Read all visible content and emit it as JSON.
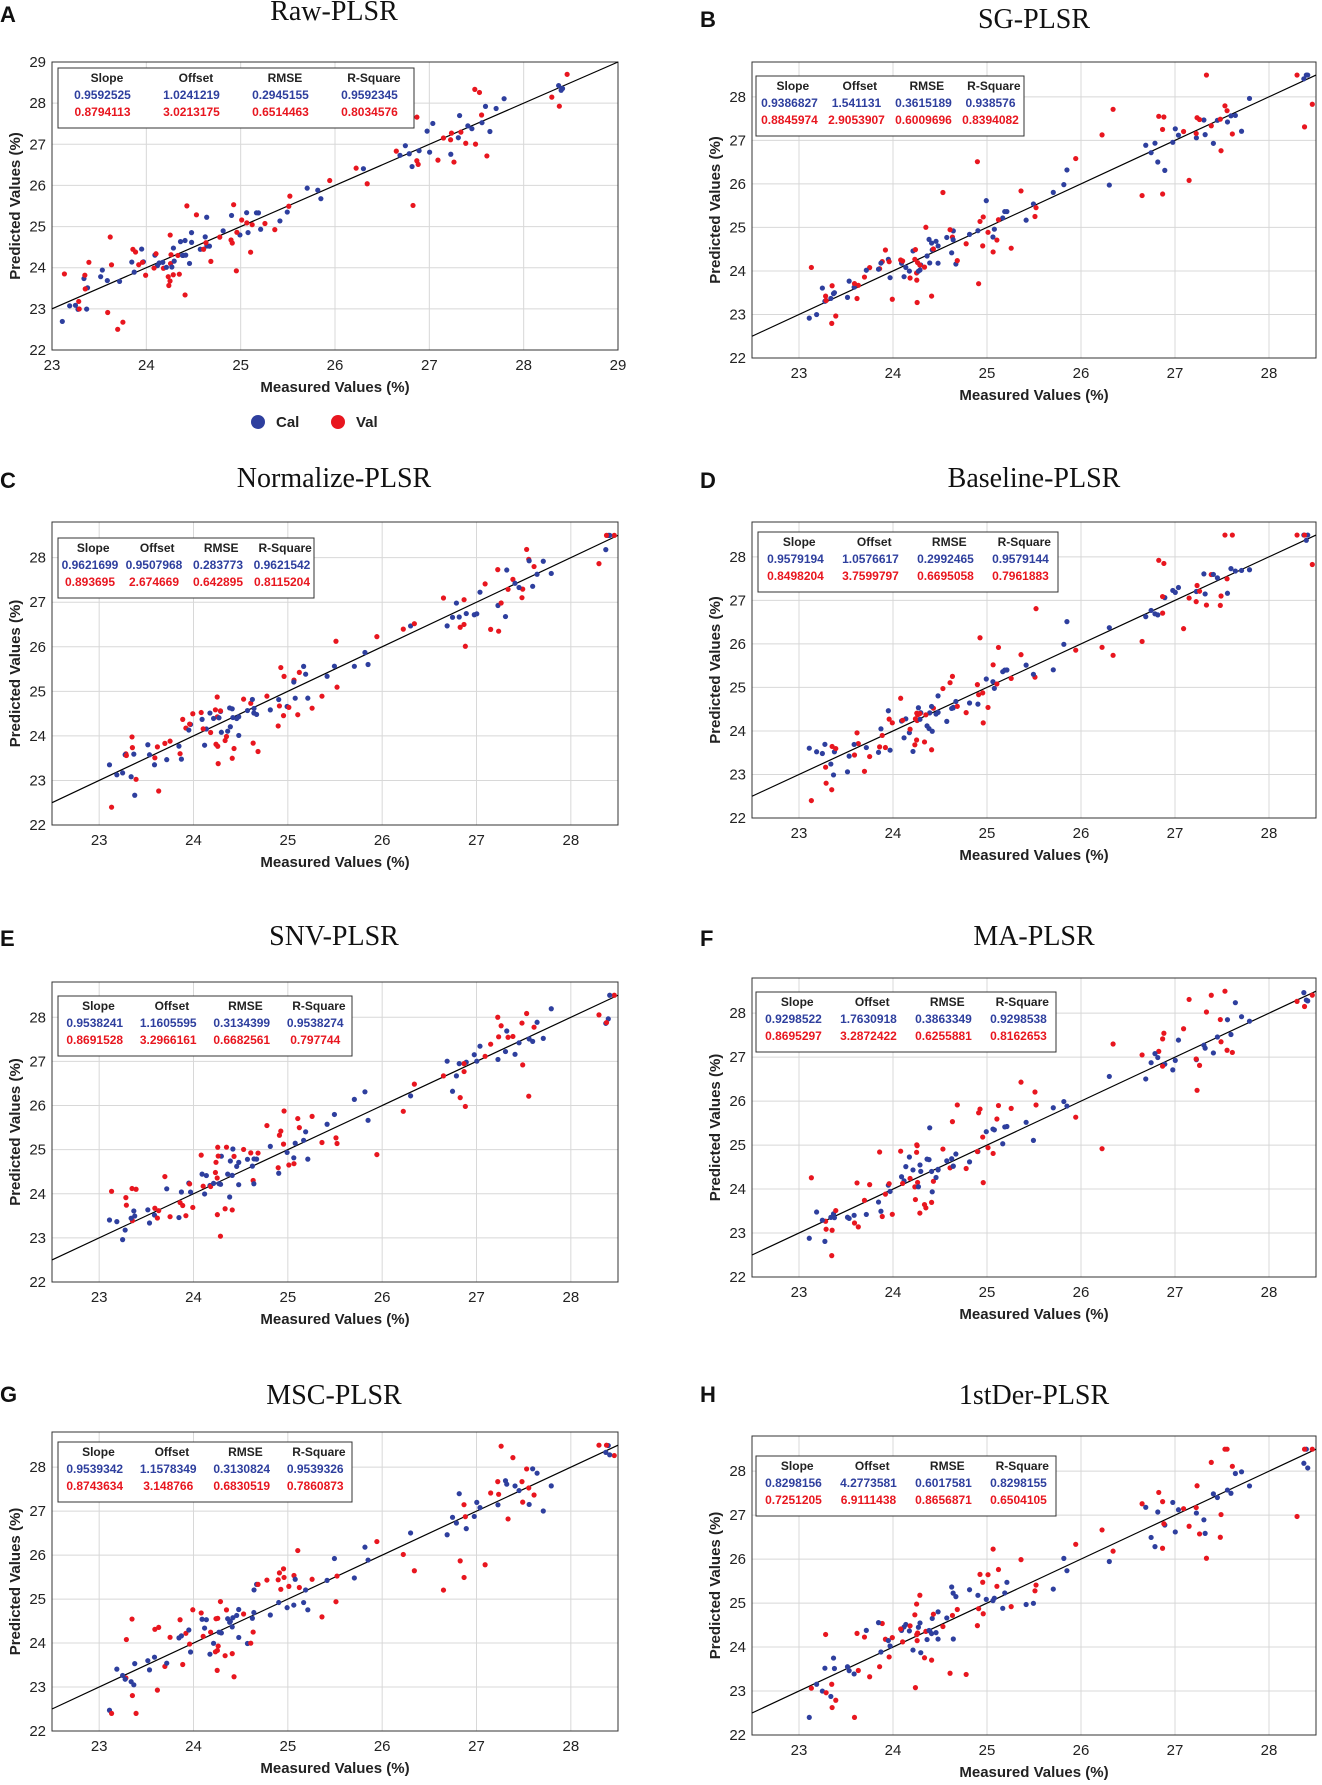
{
  "colors": {
    "cal": "#2e3f9e",
    "val": "#e8161f",
    "line": "#000000",
    "grid": "#d8d8d8"
  },
  "legend": [
    {
      "label": "Cal",
      "color": "#2e3f9e"
    },
    {
      "label": "Val",
      "color": "#e8161f"
    }
  ],
  "stat_headers": [
    "Slope",
    "Offset",
    "RMSE",
    "R-Square"
  ],
  "chart_data": [
    {
      "type": "scatter",
      "label": "A",
      "title": "Raw-PLSR",
      "xlabel": "Measured Values (%)",
      "ylabel": "Predicted Values (%)",
      "xlim": [
        23,
        29
      ],
      "ylim": [
        22,
        29
      ],
      "xticks": [
        "23",
        "24",
        "25",
        "26",
        "27",
        "28",
        "29"
      ],
      "yticks": [
        "22",
        "23",
        "24",
        "25",
        "26",
        "27",
        "28",
        "29"
      ],
      "stats": {
        "cal": [
          "0.9592525",
          "1.0241219",
          "0.2945155",
          "0.9592345"
        ],
        "val": [
          "0.8794113",
          "3.0213175",
          "0.6514463",
          "0.8034576"
        ]
      }
    },
    {
      "type": "scatter",
      "label": "B",
      "title": "SG-PLSR",
      "xlabel": "Measured Values (%)",
      "ylabel": "Predicted Values (%)",
      "xlim": [
        22.5,
        28.5
      ],
      "ylim": [
        22,
        28.8
      ],
      "xticks": [
        "23",
        "24",
        "25",
        "26",
        "27",
        "28"
      ],
      "yticks": [
        "22",
        "23",
        "24",
        "25",
        "26",
        "27",
        "28"
      ],
      "stats": {
        "cal": [
          "0.9386827",
          "1.541131",
          "0.3615189",
          "0.938576"
        ],
        "val": [
          "0.8845974",
          "2.9053907",
          "0.6009696",
          "0.8394082"
        ]
      }
    },
    {
      "type": "scatter",
      "label": "C",
      "title": "Normalize-PLSR",
      "xlabel": "Measured Values (%)",
      "ylabel": "Predicted Values (%)",
      "xlim": [
        22.5,
        28.5
      ],
      "ylim": [
        22,
        28.8
      ],
      "xticks": [
        "23",
        "24",
        "25",
        "26",
        "27",
        "28"
      ],
      "yticks": [
        "22",
        "23",
        "24",
        "25",
        "26",
        "27",
        "28"
      ],
      "stats": {
        "cal": [
          "0.9621699",
          "0.9507968",
          "0.283773",
          "0.9621542"
        ],
        "val": [
          "0.893695",
          "2.674669",
          "0.642895",
          "0.8115204"
        ]
      }
    },
    {
      "type": "scatter",
      "label": "D",
      "title": "Baseline-PLSR",
      "xlabel": "Measured Values (%)",
      "ylabel": "Predicted Values (%)",
      "xlim": [
        22.5,
        28.5
      ],
      "ylim": [
        22,
        28.8
      ],
      "xticks": [
        "23",
        "24",
        "25",
        "26",
        "27",
        "28"
      ],
      "yticks": [
        "22",
        "23",
        "24",
        "25",
        "26",
        "27",
        "28"
      ],
      "stats": {
        "cal": [
          "0.9579194",
          "1.0576617",
          "0.2992465",
          "0.9579144"
        ],
        "val": [
          "0.8498204",
          "3.7599797",
          "0.6695058",
          "0.7961883"
        ]
      }
    },
    {
      "type": "scatter",
      "label": "E",
      "title": "SNV-PLSR",
      "xlabel": "Measured Values (%)",
      "ylabel": "Predicted Values (%)",
      "xlim": [
        22.5,
        28.5
      ],
      "ylim": [
        22,
        28.8
      ],
      "xticks": [
        "23",
        "24",
        "25",
        "26",
        "27",
        "28"
      ],
      "yticks": [
        "22",
        "23",
        "24",
        "25",
        "26",
        "27",
        "28"
      ],
      "stats": {
        "cal": [
          "0.9538241",
          "1.1605595",
          "0.3134399",
          "0.9538274"
        ],
        "val": [
          "0.8691528",
          "3.2966161",
          "0.6682561",
          "0.797744"
        ]
      }
    },
    {
      "type": "scatter",
      "label": "F",
      "title": "MA-PLSR",
      "xlabel": "Measured Values (%)",
      "ylabel": "Predicted Values (%)",
      "xlim": [
        22.5,
        28.5
      ],
      "ylim": [
        22,
        28.8
      ],
      "xticks": [
        "23",
        "24",
        "25",
        "26",
        "27",
        "28"
      ],
      "yticks": [
        "22",
        "23",
        "24",
        "25",
        "26",
        "27",
        "28"
      ],
      "stats": {
        "cal": [
          "0.9298522",
          "1.7630918",
          "0.3863349",
          "0.9298538"
        ],
        "val": [
          "0.8695297",
          "3.2872422",
          "0.6255881",
          "0.8162653"
        ]
      }
    },
    {
      "type": "scatter",
      "label": "G",
      "title": "MSC-PLSR",
      "xlabel": "Measured Values (%)",
      "ylabel": "Predicted Values (%)",
      "xlim": [
        22.5,
        28.5
      ],
      "ylim": [
        22,
        28.8
      ],
      "xticks": [
        "23",
        "24",
        "25",
        "26",
        "27",
        "28"
      ],
      "yticks": [
        "22",
        "23",
        "24",
        "25",
        "26",
        "27",
        "28"
      ],
      "stats": {
        "cal": [
          "0.9539342",
          "1.1578349",
          "0.3130824",
          "0.9539326"
        ],
        "val": [
          "0.8743634",
          "3.148766",
          "0.6830519",
          "0.7860873"
        ]
      }
    },
    {
      "type": "scatter",
      "label": "H",
      "title": "1stDer-PLSR",
      "xlabel": "Measured Values (%)",
      "ylabel": "Predicted Values (%)",
      "xlim": [
        22.5,
        28.5
      ],
      "ylim": [
        22,
        28.8
      ],
      "xticks": [
        "23",
        "24",
        "25",
        "26",
        "27",
        "28"
      ],
      "yticks": [
        "22",
        "23",
        "24",
        "25",
        "26",
        "27",
        "28"
      ],
      "stats": {
        "cal": [
          "0.8298156",
          "4.2773581",
          "0.6017581",
          "0.8298155"
        ],
        "val": [
          "0.7251205",
          "6.9111438",
          "0.8656871",
          "0.6504105"
        ]
      }
    }
  ]
}
